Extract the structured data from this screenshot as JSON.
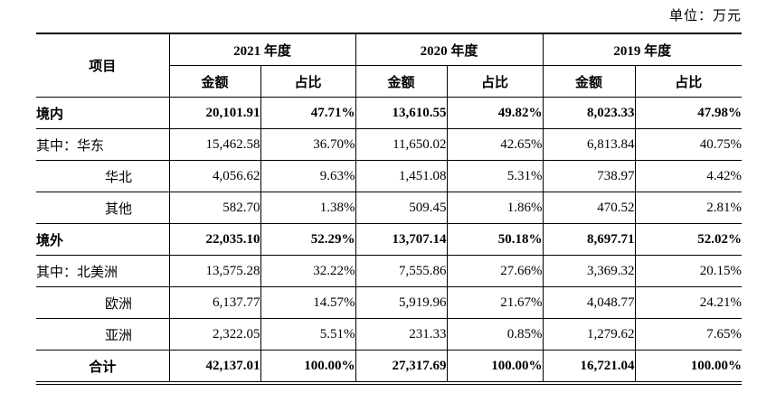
{
  "unit_label": "单位：万元",
  "table": {
    "header": {
      "item_label": "项目",
      "year_groups": [
        "2021 年度",
        "2020 年度",
        "2019 年度"
      ],
      "sub_headers": [
        "金额",
        "占比"
      ]
    },
    "rows": [
      {
        "label": "境内",
        "style": "bold",
        "values": [
          "20,101.91",
          "47.71%",
          "13,610.55",
          "49.82%",
          "8,023.33",
          "47.98%"
        ]
      },
      {
        "label": "其中：华东",
        "style": "normal",
        "values": [
          "15,462.58",
          "36.70%",
          "11,650.02",
          "42.65%",
          "6,813.84",
          "40.75%"
        ]
      },
      {
        "label": "华北",
        "style": "indent",
        "values": [
          "4,056.62",
          "9.63%",
          "1,451.08",
          "5.31%",
          "738.97",
          "4.42%"
        ]
      },
      {
        "label": "其他",
        "style": "indent",
        "values": [
          "582.70",
          "1.38%",
          "509.45",
          "1.86%",
          "470.52",
          "2.81%"
        ]
      },
      {
        "label": "境外",
        "style": "bold",
        "values": [
          "22,035.10",
          "52.29%",
          "13,707.14",
          "50.18%",
          "8,697.71",
          "52.02%"
        ]
      },
      {
        "label": "其中：北美洲",
        "style": "normal",
        "values": [
          "13,575.28",
          "32.22%",
          "7,555.86",
          "27.66%",
          "3,369.32",
          "20.15%"
        ]
      },
      {
        "label": "欧洲",
        "style": "indent",
        "values": [
          "6,137.77",
          "14.57%",
          "5,919.96",
          "21.67%",
          "4,048.77",
          "24.21%"
        ]
      },
      {
        "label": "亚洲",
        "style": "indent",
        "values": [
          "2,322.05",
          "5.51%",
          "231.33",
          "0.85%",
          "1,279.62",
          "7.65%"
        ]
      },
      {
        "label": "合计",
        "style": "total",
        "values": [
          "42,137.01",
          "100.00%",
          "27,317.69",
          "100.00%",
          "16,721.04",
          "100.00%"
        ]
      }
    ]
  }
}
